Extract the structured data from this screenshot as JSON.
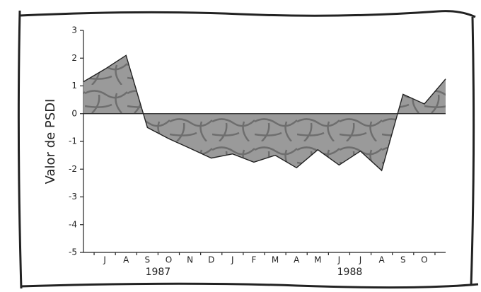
{
  "chart_data": {
    "type": "area",
    "y_label": "Valor de PSDI",
    "categories": [
      null,
      "J",
      "A",
      "S",
      "O",
      "N",
      "D",
      "J",
      "F",
      "M",
      "A",
      "M",
      "J",
      "J",
      "A",
      "S",
      "O",
      null
    ],
    "values": [
      1.15,
      1.6,
      2.1,
      -0.5,
      -0.9,
      -1.25,
      -1.6,
      -1.45,
      -1.75,
      -1.5,
      -1.95,
      -1.3,
      -1.85,
      -1.35,
      -2.05,
      0.7,
      0.35,
      1.25
    ],
    "color": "#8c8c8c",
    "ylim": [
      -5,
      3
    ],
    "yticks": [
      -5,
      -4,
      -3,
      -2,
      -1,
      0,
      1,
      2,
      3
    ],
    "annotations": [
      {
        "text": "1987",
        "category": 3.5
      },
      {
        "text": "1988",
        "category": 12.5
      }
    ]
  }
}
